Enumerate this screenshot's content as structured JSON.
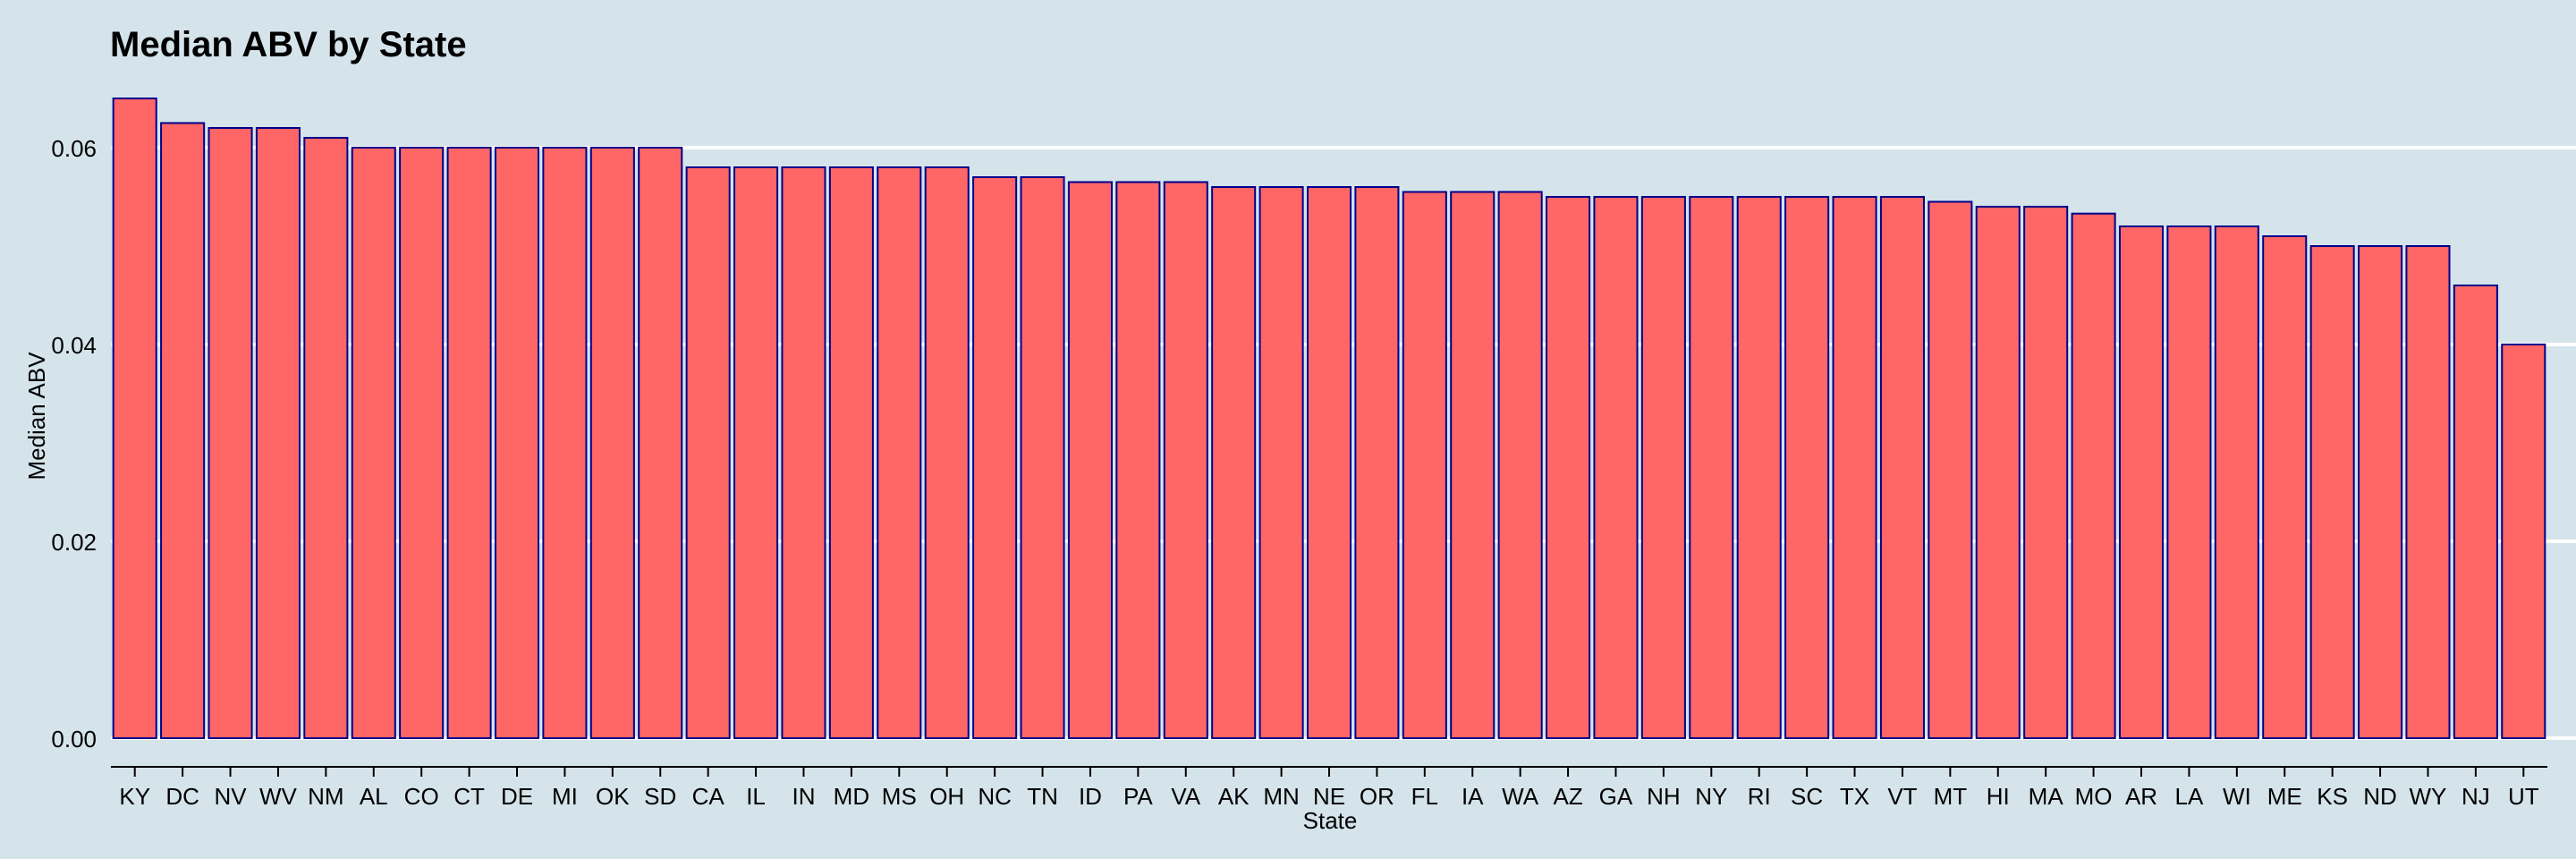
{
  "chart_data": {
    "type": "bar",
    "title": "Median ABV by State",
    "xlabel": "State",
    "ylabel": "Median ABV",
    "ylim": [
      0,
      0.065
    ],
    "yticks": [
      "0.00",
      "0.02",
      "0.04",
      "0.06"
    ],
    "grid": "horizontal, white",
    "legend": "none",
    "categories": [
      "KY",
      "DC",
      "NV",
      "WV",
      "NM",
      "AL",
      "CO",
      "CT",
      "DE",
      "MI",
      "OK",
      "SD",
      "CA",
      "IL",
      "IN",
      "MD",
      "MS",
      "OH",
      "NC",
      "TN",
      "ID",
      "PA",
      "VA",
      "AK",
      "MN",
      "NE",
      "OR",
      "FL",
      "IA",
      "WA",
      "AZ",
      "GA",
      "NH",
      "NY",
      "RI",
      "SC",
      "TX",
      "VT",
      "MT",
      "HI",
      "MA",
      "MO",
      "AR",
      "LA",
      "WI",
      "ME",
      "KS",
      "ND",
      "WY",
      "NJ",
      "UT"
    ],
    "values": [
      0.065,
      0.0625,
      0.062,
      0.062,
      0.061,
      0.06,
      0.06,
      0.06,
      0.06,
      0.06,
      0.06,
      0.06,
      0.058,
      0.058,
      0.058,
      0.058,
      0.058,
      0.058,
      0.057,
      0.057,
      0.0565,
      0.0565,
      0.0565,
      0.056,
      0.056,
      0.056,
      0.056,
      0.0555,
      0.0555,
      0.0555,
      0.055,
      0.055,
      0.055,
      0.055,
      0.055,
      0.055,
      0.055,
      0.055,
      0.0545,
      0.054,
      0.054,
      0.0533,
      0.052,
      0.052,
      0.052,
      0.051,
      0.05,
      0.05,
      0.05,
      0.046,
      0.04
    ],
    "colors": {
      "background": "#d5e4eb",
      "bar_fill": "#ff6666",
      "bar_stroke": "#00008b",
      "grid": "#ffffff",
      "text": "#000000"
    }
  }
}
